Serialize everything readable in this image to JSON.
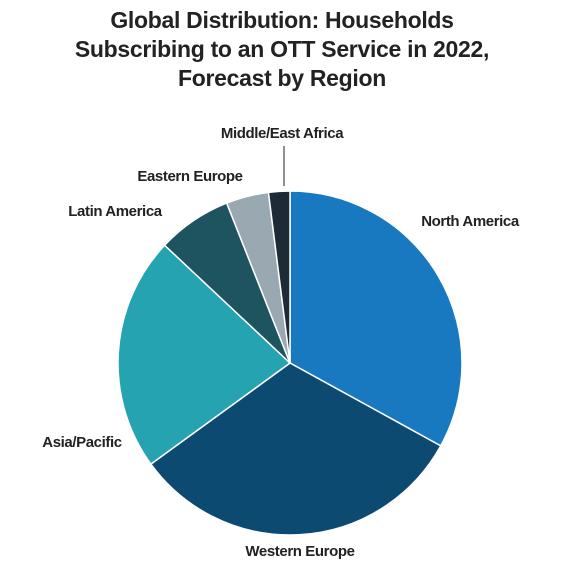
{
  "chart_data": {
    "type": "pie",
    "title": "Global Distribution: Households Subscribing to an OTT Service in 2022, Forecast by Region",
    "categories": [
      "North America",
      "Western Europe",
      "Asia/Pacific",
      "Latin America",
      "Eastern Europe",
      "Middle/East Africa"
    ],
    "values": [
      33,
      32,
      22,
      7,
      4,
      2
    ],
    "colors": [
      "#1878c0",
      "#0d4a72",
      "#26a3b0",
      "#1d5460",
      "#9aa8b2",
      "#1e2a36"
    ]
  }
}
